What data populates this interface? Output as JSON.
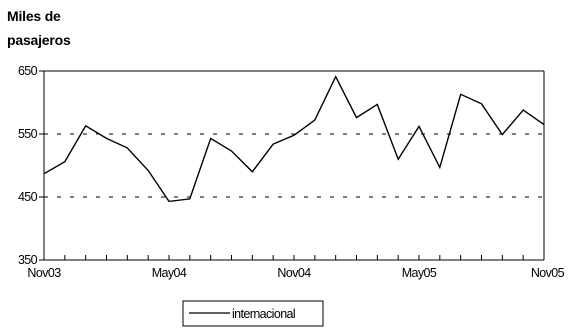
{
  "chart_data": {
    "type": "line",
    "ylabel_lines": [
      "Miles de",
      "pasajeros"
    ],
    "ylim": [
      350,
      650
    ],
    "yticks": [
      350,
      450,
      550,
      650
    ],
    "ytick_labels": [
      "350",
      "450",
      "550",
      "650"
    ],
    "grid": "dashed horizontal",
    "x_labels": [
      {
        "index": 0,
        "label": "Nov03"
      },
      {
        "index": 6,
        "label": "May04"
      },
      {
        "index": 12,
        "label": "Nov04"
      },
      {
        "index": 18,
        "label": "May05"
      },
      {
        "index": 24,
        "label": "Nov05"
      }
    ],
    "x": [
      "Nov03",
      "Dec03",
      "Jan04",
      "Feb04",
      "Mar04",
      "Apr04",
      "May04",
      "Jun04",
      "Jul04",
      "Aug04",
      "Sep04",
      "Oct04",
      "Nov04",
      "Dec04",
      "Jan05",
      "Feb05",
      "Mar05",
      "Apr05",
      "May05",
      "Jun05",
      "Jul05",
      "Aug05",
      "Sep05",
      "Oct05",
      "Nov05"
    ],
    "series": [
      {
        "name": "internacional",
        "color": "#000000",
        "values": [
          487,
          506,
          563,
          543,
          528,
          492,
          443,
          447,
          543,
          523,
          490,
          534,
          548,
          572,
          641,
          576,
          597,
          510,
          562,
          497,
          613,
          598,
          549,
          588,
          565
        ]
      }
    ],
    "legend_position": "bottom"
  }
}
